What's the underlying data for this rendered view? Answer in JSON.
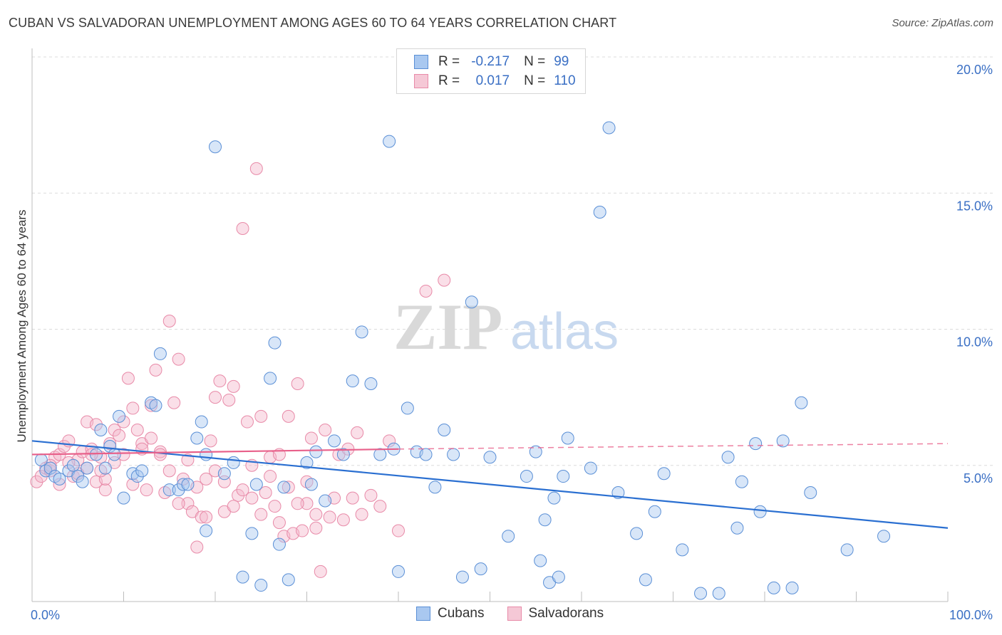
{
  "title": "CUBAN VS SALVADORAN UNEMPLOYMENT AMONG AGES 60 TO 64 YEARS CORRELATION CHART",
  "source": "Source: ZipAtlas.com",
  "watermark": {
    "zip": "ZIP",
    "atlas": "atlas"
  },
  "legend": {
    "r_label": "R =",
    "n_label": "N =",
    "rows": [
      {
        "r": "-0.217",
        "n": "99"
      },
      {
        "r": "0.017",
        "n": "110"
      }
    ]
  },
  "bottom_legend": [
    "Cubans",
    "Salvadorans"
  ],
  "colors": {
    "cubans_fill": "#a9c8f0",
    "cubans_stroke": "#5a8fd6",
    "cubans_line": "#2a6fd1",
    "salvadorans_fill": "#f5b9cb",
    "salvadorans_stroke": "#e88aa8",
    "salvadorans_line": "#e8608a",
    "tick_label": "#3a6fc4"
  },
  "chart_data": {
    "type": "scatter",
    "title": "CUBAN VS SALVADORAN UNEMPLOYMENT AMONG AGES 60 TO 64 YEARS CORRELATION CHART",
    "xlabel": "",
    "ylabel": "Unemployment Among Ages 60 to 64 years",
    "xlim": [
      0,
      100
    ],
    "ylim": [
      0,
      20
    ],
    "x_tick_labels": [
      "0.0%",
      "100.0%"
    ],
    "y_ticks": [
      5,
      10,
      15,
      20
    ],
    "y_tick_labels": [
      "5.0%",
      "10.0%",
      "15.0%",
      "20.0%"
    ],
    "grid": true,
    "legend_position": "top-center",
    "series": [
      {
        "name": "Cubans",
        "trend": {
          "x": [
            0,
            100
          ],
          "y": [
            5.9,
            2.7
          ]
        },
        "points": [
          [
            1,
            5.2
          ],
          [
            1.5,
            4.8
          ],
          [
            2,
            4.9
          ],
          [
            2.5,
            4.6
          ],
          [
            3,
            4.5
          ],
          [
            4,
            4.8
          ],
          [
            4.5,
            5.0
          ],
          [
            5,
            4.6
          ],
          [
            5.5,
            4.4
          ],
          [
            6,
            4.9
          ],
          [
            7,
            5.4
          ],
          [
            7.5,
            6.3
          ],
          [
            8,
            4.9
          ],
          [
            8.5,
            5.7
          ],
          [
            9,
            5.4
          ],
          [
            9.5,
            6.8
          ],
          [
            10,
            3.8
          ],
          [
            11,
            4.7
          ],
          [
            11.5,
            4.6
          ],
          [
            12,
            4.8
          ],
          [
            13,
            7.3
          ],
          [
            13.5,
            7.2
          ],
          [
            14,
            9.1
          ],
          [
            15,
            4.1
          ],
          [
            16,
            4.1
          ],
          [
            16.5,
            4.3
          ],
          [
            17,
            4.3
          ],
          [
            18,
            6.0
          ],
          [
            18.5,
            6.6
          ],
          [
            19,
            5.4
          ],
          [
            19,
            2.6
          ],
          [
            20,
            16.7
          ],
          [
            21,
            4.7
          ],
          [
            22,
            5.1
          ],
          [
            23,
            0.9
          ],
          [
            24,
            2.5
          ],
          [
            24.5,
            4.3
          ],
          [
            25,
            0.6
          ],
          [
            26,
            8.2
          ],
          [
            26.5,
            9.5
          ],
          [
            27,
            2.1
          ],
          [
            27.5,
            4.2
          ],
          [
            28,
            0.8
          ],
          [
            30,
            5.1
          ],
          [
            30.5,
            4.3
          ],
          [
            31,
            5.5
          ],
          [
            32,
            3.7
          ],
          [
            33,
            5.9
          ],
          [
            34,
            5.4
          ],
          [
            35,
            8.1
          ],
          [
            36,
            9.9
          ],
          [
            37,
            8.0
          ],
          [
            38,
            5.4
          ],
          [
            39,
            16.9
          ],
          [
            39.5,
            5.6
          ],
          [
            40,
            1.1
          ],
          [
            41,
            7.1
          ],
          [
            42,
            5.5
          ],
          [
            43,
            5.4
          ],
          [
            44,
            4.2
          ],
          [
            45,
            6.3
          ],
          [
            46,
            5.4
          ],
          [
            47,
            0.9
          ],
          [
            48,
            11.0
          ],
          [
            49,
            1.2
          ],
          [
            50,
            5.3
          ],
          [
            52,
            2.4
          ],
          [
            54,
            4.6
          ],
          [
            55,
            5.5
          ],
          [
            55.5,
            1.5
          ],
          [
            56,
            3.0
          ],
          [
            56.5,
            0.7
          ],
          [
            57,
            3.8
          ],
          [
            57.5,
            0.9
          ],
          [
            58,
            4.6
          ],
          [
            58.5,
            6.0
          ],
          [
            61,
            4.9
          ],
          [
            62,
            14.3
          ],
          [
            63,
            17.4
          ],
          [
            64,
            4.0
          ],
          [
            66,
            2.5
          ],
          [
            67,
            0.8
          ],
          [
            68,
            3.3
          ],
          [
            69,
            4.7
          ],
          [
            71,
            1.9
          ],
          [
            73,
            0.3
          ],
          [
            75,
            0.3
          ],
          [
            76,
            5.3
          ],
          [
            77,
            2.7
          ],
          [
            77.5,
            4.4
          ],
          [
            79,
            5.8
          ],
          [
            79.5,
            3.3
          ],
          [
            81,
            0.5
          ],
          [
            82,
            5.9
          ],
          [
            83,
            0.5
          ],
          [
            84,
            7.3
          ],
          [
            85,
            4.0
          ],
          [
            89,
            1.9
          ],
          [
            93,
            2.4
          ]
        ]
      },
      {
        "name": "Salvadorans",
        "trend": {
          "x": [
            0,
            40
          ],
          "y": [
            5.4,
            5.6
          ]
        },
        "trend_extension": {
          "x": [
            40,
            100
          ],
          "y": [
            5.6,
            5.8
          ]
        },
        "points": [
          [
            0.5,
            4.4
          ],
          [
            1,
            4.6
          ],
          [
            1.5,
            4.9
          ],
          [
            2,
            4.8
          ],
          [
            2.5,
            5.3
          ],
          [
            3,
            5.4
          ],
          [
            3.5,
            5.7
          ],
          [
            4,
            5.9
          ],
          [
            4.5,
            4.6
          ],
          [
            5,
            5.2
          ],
          [
            5.5,
            5.5
          ],
          [
            6,
            6.6
          ],
          [
            6.5,
            5.6
          ],
          [
            7,
            4.4
          ],
          [
            7.5,
            5.3
          ],
          [
            8,
            4.1
          ],
          [
            8.5,
            5.8
          ],
          [
            9,
            6.3
          ],
          [
            9.5,
            6.1
          ],
          [
            10,
            5.4
          ],
          [
            10.5,
            8.2
          ],
          [
            11,
            4.3
          ],
          [
            11.5,
            6.3
          ],
          [
            12,
            5.8
          ],
          [
            12.5,
            4.1
          ],
          [
            13,
            7.2
          ],
          [
            13.5,
            8.5
          ],
          [
            14,
            5.5
          ],
          [
            14.5,
            4.0
          ],
          [
            15,
            10.3
          ],
          [
            15.5,
            7.3
          ],
          [
            16,
            8.9
          ],
          [
            16.5,
            4.5
          ],
          [
            17,
            3.6
          ],
          [
            17.5,
            3.3
          ],
          [
            18,
            2.0
          ],
          [
            18.5,
            3.1
          ],
          [
            19,
            3.1
          ],
          [
            19.5,
            5.9
          ],
          [
            20,
            7.5
          ],
          [
            20.5,
            8.1
          ],
          [
            21,
            3.3
          ],
          [
            21.5,
            7.4
          ],
          [
            22,
            7.9
          ],
          [
            22.5,
            3.9
          ],
          [
            23,
            13.7
          ],
          [
            23.5,
            6.6
          ],
          [
            24,
            3.8
          ],
          [
            24.5,
            15.9
          ],
          [
            25,
            6.8
          ],
          [
            25.5,
            4.0
          ],
          [
            26,
            5.3
          ],
          [
            26.5,
            3.5
          ],
          [
            27,
            5.4
          ],
          [
            27.5,
            2.4
          ],
          [
            28,
            6.8
          ],
          [
            28.5,
            2.5
          ],
          [
            29,
            8.0
          ],
          [
            29.5,
            2.6
          ],
          [
            30,
            3.6
          ],
          [
            30.5,
            6.0
          ],
          [
            31,
            3.2
          ],
          [
            31.5,
            1.1
          ],
          [
            32,
            6.3
          ],
          [
            32.5,
            3.1
          ],
          [
            33,
            3.8
          ],
          [
            33.5,
            5.4
          ],
          [
            34,
            3.0
          ],
          [
            34.5,
            5.6
          ],
          [
            35,
            3.8
          ],
          [
            35.5,
            6.2
          ],
          [
            36,
            3.2
          ],
          [
            37,
            3.9
          ],
          [
            38,
            3.5
          ],
          [
            39,
            5.9
          ],
          [
            40,
            2.6
          ],
          [
            43,
            11.4
          ],
          [
            45,
            11.8
          ],
          [
            6,
            4.9
          ],
          [
            7,
            6.5
          ],
          [
            8,
            4.5
          ],
          [
            9,
            5.1
          ],
          [
            10,
            6.6
          ],
          [
            11,
            7.1
          ],
          [
            12,
            5.6
          ],
          [
            13,
            6.0
          ],
          [
            14,
            5.4
          ],
          [
            15,
            4.8
          ],
          [
            16,
            3.6
          ],
          [
            17,
            5.2
          ],
          [
            18,
            4.2
          ],
          [
            19,
            4.5
          ],
          [
            20,
            4.8
          ],
          [
            21,
            4.4
          ],
          [
            22,
            3.5
          ],
          [
            23,
            4.1
          ],
          [
            24,
            5.0
          ],
          [
            25,
            3.2
          ],
          [
            26,
            4.6
          ],
          [
            27,
            2.9
          ],
          [
            28,
            4.2
          ],
          [
            29,
            3.6
          ],
          [
            30,
            4.4
          ],
          [
            31,
            2.7
          ],
          [
            2,
            5.0
          ],
          [
            3,
            4.3
          ],
          [
            4,
            5.1
          ],
          [
            5,
            4.7
          ],
          [
            6.5,
            5.4
          ],
          [
            7.5,
            4.8
          ]
        ]
      }
    ]
  }
}
